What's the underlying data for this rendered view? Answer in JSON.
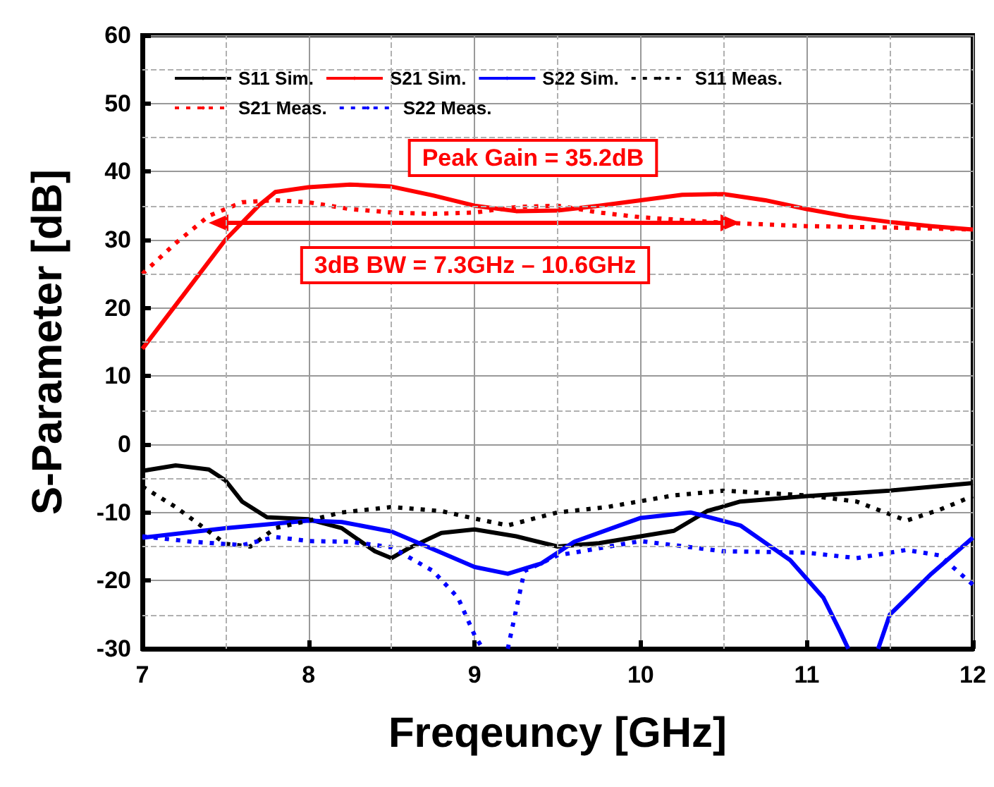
{
  "chart_data": {
    "type": "line",
    "xlabel": "Freqeuncy [GHz]",
    "ylabel": "S-Parameter [dB]",
    "xlim": [
      7,
      12
    ],
    "xticks": [
      7,
      8,
      9,
      10,
      11,
      12
    ],
    "ylim": [
      -30,
      60
    ],
    "yticks": [
      -30,
      -20,
      -10,
      0,
      10,
      20,
      30,
      40,
      50,
      60
    ],
    "grid": true,
    "legend": "top",
    "marker": "none",
    "annotations": [
      "Peak Gain = 35.2dB",
      "3dB BW = 7.3GHz – 10.6GHz"
    ],
    "series": [
      {
        "name": "S11 Sim.",
        "color": "#000000",
        "line_style": "solid",
        "x": [
          7,
          7.2,
          7.4,
          7.5,
          7.6,
          7.75,
          8,
          8.2,
          8.4,
          8.5,
          8.6,
          8.8,
          9,
          9.25,
          9.5,
          9.75,
          10,
          10.2,
          10.4,
          10.6,
          11,
          11.5,
          12
        ],
        "values": [
          -3.9,
          -3.1,
          -3.7,
          -5.3,
          -8.4,
          -10.7,
          -11,
          -12.3,
          -15.7,
          -16.7,
          -15.3,
          -13,
          -12.5,
          -13.5,
          -15,
          -14.5,
          -13.5,
          -12.7,
          -9.8,
          -8.4,
          -7.6,
          -6.8,
          -5.7
        ]
      },
      {
        "name": "S21 Sim.",
        "color": "#ff0000",
        "line_style": "solid",
        "x": [
          7,
          7.25,
          7.5,
          7.7,
          7.8,
          8,
          8.25,
          8.5,
          8.75,
          9,
          9.25,
          9.5,
          9.75,
          10,
          10.25,
          10.5,
          10.75,
          11,
          11.25,
          11.5,
          11.75,
          12
        ],
        "values": [
          14,
          22,
          30,
          35,
          37,
          37.7,
          38.1,
          37.8,
          36.5,
          35,
          34.2,
          34.3,
          35,
          35.8,
          36.6,
          36.7,
          35.8,
          34.5,
          33.4,
          32.6,
          32,
          31.5
        ]
      },
      {
        "name": "S22 Sim.",
        "color": "#0000ff",
        "line_style": "solid",
        "x": [
          7,
          7.5,
          8,
          8.2,
          8.5,
          8.8,
          9,
          9.2,
          9.4,
          9.6,
          10,
          10.3,
          10.6,
          10.9,
          11.1,
          11.2,
          11.25,
          11.34,
          11.43,
          11.5,
          11.75,
          12
        ],
        "values": [
          -13.7,
          -12.3,
          -11.2,
          -11.4,
          -12.8,
          -15.9,
          -18,
          -19,
          -17.5,
          -14.3,
          -10.8,
          -10,
          -11.9,
          -17,
          -22.5,
          -27.4,
          -30,
          null,
          -30,
          -25,
          -19,
          -13.7
        ]
      },
      {
        "name": "S11 Meas.",
        "color": "#000000",
        "line_style": "dotted",
        "x": [
          7,
          7.2,
          7.35,
          7.5,
          7.65,
          7.8,
          8,
          8.2,
          8.5,
          8.8,
          9,
          9.2,
          9.5,
          9.8,
          10.2,
          10.5,
          11,
          11.3,
          11.6,
          11.8,
          12
        ],
        "values": [
          -6.2,
          -9.2,
          -11.9,
          -14.6,
          -15,
          -12.3,
          -11.2,
          -10,
          -9.2,
          -9.8,
          -10.9,
          -11.9,
          -10,
          -9.2,
          -7.5,
          -6.8,
          -7.5,
          -8.4,
          -11.2,
          -9.6,
          -7.6
        ]
      },
      {
        "name": "S21 Meas.",
        "color": "#ff0000",
        "line_style": "dotted",
        "x": [
          7,
          7.2,
          7.4,
          7.6,
          7.8,
          8,
          8.25,
          8.5,
          8.75,
          9,
          9.25,
          9.5,
          9.75,
          10,
          10.5,
          11,
          11.5,
          12
        ],
        "values": [
          25,
          29.5,
          33.5,
          35.5,
          35.8,
          35.5,
          34.5,
          34,
          33.8,
          34,
          34.8,
          35,
          34,
          33.3,
          32.5,
          32,
          31.8,
          31.5
        ]
      },
      {
        "name": "S22 Meas.",
        "color": "#0000ff",
        "line_style": "dotted",
        "x": [
          7,
          7.3,
          7.6,
          7.8,
          8,
          8.25,
          8.5,
          8.75,
          8.9,
          9,
          9.05,
          9.12,
          9.2,
          9.3,
          9.5,
          10,
          10.5,
          11,
          11.3,
          11.6,
          11.8,
          12
        ],
        "values": [
          -13.5,
          -14.3,
          -14.8,
          -13.6,
          -14.2,
          -14.3,
          -15.1,
          -18.6,
          -22.5,
          -28,
          -30,
          null,
          -30,
          -18.6,
          -16.3,
          -14.2,
          -15.7,
          -15.9,
          -16.7,
          -15.5,
          -16.3,
          -20.6
        ]
      }
    ]
  }
}
